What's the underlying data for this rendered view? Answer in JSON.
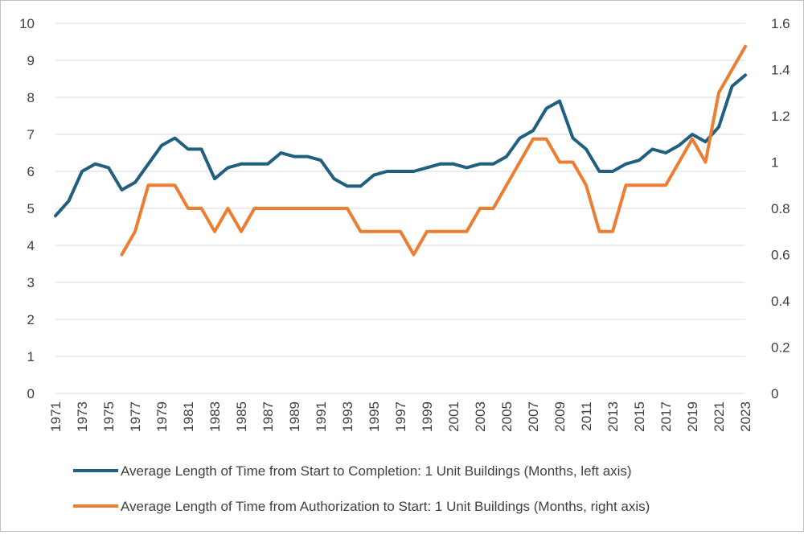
{
  "chart_data": {
    "type": "line",
    "title": "",
    "xlabel": "",
    "ylabel": "",
    "y2label": "",
    "grid": true,
    "legend_position": "bottom",
    "x": [
      1971,
      1972,
      1973,
      1974,
      1975,
      1976,
      1977,
      1978,
      1979,
      1980,
      1981,
      1982,
      1983,
      1984,
      1985,
      1986,
      1987,
      1988,
      1989,
      1990,
      1991,
      1992,
      1993,
      1994,
      1995,
      1996,
      1997,
      1998,
      1999,
      2000,
      2001,
      2002,
      2003,
      2004,
      2005,
      2006,
      2007,
      2008,
      2009,
      2010,
      2011,
      2012,
      2013,
      2014,
      2015,
      2016,
      2017,
      2018,
      2019,
      2020,
      2021,
      2022,
      2023
    ],
    "x_tick_labels": [
      "1971",
      "1973",
      "1975",
      "1977",
      "1979",
      "1981",
      "1983",
      "1985",
      "1987",
      "1989",
      "1991",
      "1993",
      "1995",
      "1997",
      "1999",
      "2001",
      "2003",
      "2005",
      "2007",
      "2009",
      "2011",
      "2013",
      "2015",
      "2017",
      "2019",
      "2021",
      "2023"
    ],
    "ylim": [
      0,
      10
    ],
    "y_ticks": [
      "0",
      "1",
      "2",
      "3",
      "4",
      "5",
      "6",
      "7",
      "8",
      "9",
      "10"
    ],
    "y2lim": [
      0,
      1.6
    ],
    "y2_ticks": [
      "0",
      "0.2",
      "0.4",
      "0.6",
      "0.8",
      "1",
      "1.2",
      "1.4",
      "1.6"
    ],
    "series": [
      {
        "name": "Average Length of Time from Start to Completion: 1 Unit Buildings (Months, left axis)",
        "axis": "left",
        "color": "#1f5f7f",
        "values": [
          4.8,
          5.2,
          6.0,
          6.2,
          6.1,
          5.5,
          5.7,
          6.2,
          6.7,
          6.9,
          6.6,
          6.6,
          5.8,
          6.1,
          6.2,
          6.2,
          6.2,
          6.5,
          6.4,
          6.4,
          6.3,
          5.8,
          5.6,
          5.6,
          5.9,
          6.0,
          6.0,
          6.0,
          6.1,
          6.2,
          6.2,
          6.1,
          6.2,
          6.2,
          6.4,
          6.9,
          7.1,
          7.7,
          7.9,
          6.9,
          6.6,
          6.0,
          6.0,
          6.2,
          6.3,
          6.6,
          6.5,
          6.7,
          7.0,
          6.8,
          7.2,
          8.3,
          8.6
        ]
      },
      {
        "name": "Average Length of Time from Authorization to Start: 1 Unit Buildings (Months, right axis)",
        "axis": "right",
        "color": "#ed7d31",
        "values": [
          null,
          null,
          null,
          null,
          null,
          0.6,
          0.7,
          0.9,
          0.9,
          0.9,
          0.8,
          0.8,
          0.7,
          0.8,
          0.7,
          0.8,
          0.8,
          0.8,
          0.8,
          0.8,
          0.8,
          0.8,
          0.8,
          0.7,
          0.7,
          0.7,
          0.7,
          0.6,
          0.7,
          0.7,
          0.7,
          0.7,
          0.8,
          0.8,
          0.9,
          1.0,
          1.1,
          1.1,
          1.0,
          1.0,
          0.9,
          0.7,
          0.7,
          0.9,
          0.9,
          0.9,
          0.9,
          1.0,
          1.1,
          1.0,
          1.3,
          1.4,
          1.5
        ]
      }
    ]
  }
}
